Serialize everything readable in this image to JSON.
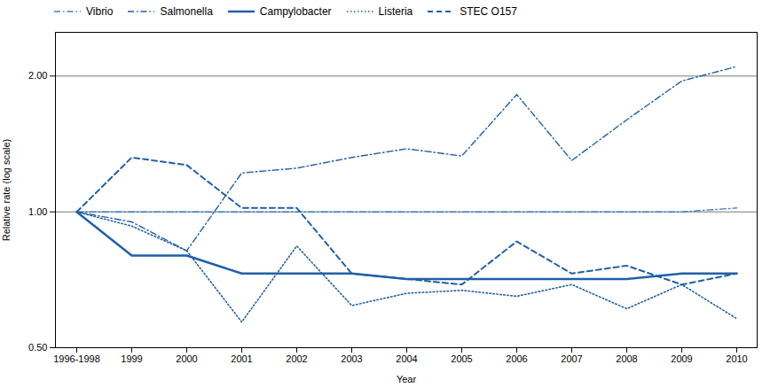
{
  "chart_data": {
    "type": "line",
    "categories": [
      "1996-1998",
      "1999",
      "2000",
      "2001",
      "2002",
      "2003",
      "2004",
      "2005",
      "2006",
      "2007",
      "2008",
      "2009",
      "2010"
    ],
    "series": [
      {
        "name": "Vibrio",
        "color": "#4080c0",
        "line_style": "dashdot",
        "x": [
          "1996-1998",
          "2009",
          "2010"
        ],
        "values": [
          1.0,
          1.0,
          1.02
        ]
      },
      {
        "name": "Salmonella",
        "color": "#2060a8",
        "line_style": "dashdot",
        "values": [
          1.0,
          0.95,
          0.82,
          1.22,
          1.25,
          1.32,
          1.38,
          1.33,
          1.82,
          1.3,
          1.6,
          1.95,
          2.1
        ]
      },
      {
        "name": "Campylobacter",
        "color": "#2060a8",
        "line_style": "solid",
        "values": [
          1.0,
          0.8,
          0.8,
          0.73,
          0.73,
          0.73,
          0.71,
          0.71,
          0.71,
          0.71,
          0.71,
          0.73,
          0.73
        ]
      },
      {
        "name": "Listeria",
        "color": "#2060a8",
        "line_style": "dotted",
        "values": [
          1.0,
          0.93,
          0.82,
          0.57,
          0.84,
          0.62,
          0.66,
          0.67,
          0.65,
          0.69,
          0.61,
          0.69,
          0.58
        ]
      },
      {
        "name": "STEC O157",
        "color": "#2060a8",
        "line_style": "dashed",
        "values": [
          1.0,
          1.32,
          1.27,
          1.02,
          1.02,
          0.73,
          0.71,
          0.69,
          0.86,
          0.73,
          0.76,
          0.69,
          0.73
        ]
      }
    ],
    "reference_lines": [
      1.0,
      2.0
    ],
    "xlabel": "Year",
    "ylabel": "Relative rate (log scale)",
    "log": "y",
    "ylim": [
      0.5,
      2.5
    ],
    "yticks": [
      {
        "value": 0.5,
        "label": "0.50"
      },
      {
        "value": 1.0,
        "label": "1.00"
      },
      {
        "value": 2.0,
        "label": "2.00"
      }
    ],
    "grid": false,
    "legend": "upper left"
  }
}
